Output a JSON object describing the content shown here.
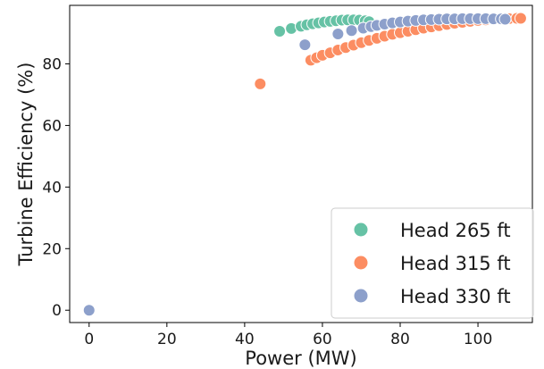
{
  "chart_data": {
    "type": "scatter",
    "title": "",
    "xlabel": "Power (MW)",
    "ylabel": "Turbine Efficiency (%)",
    "xlim": [
      -5,
      114
    ],
    "ylim": [
      -4,
      99
    ],
    "xticks": [
      0,
      20,
      40,
      60,
      80,
      100
    ],
    "yticks": [
      0,
      20,
      40,
      60,
      80
    ],
    "grid": false,
    "legend_position": "bottom-right",
    "series": [
      {
        "name": "Head 265 ft",
        "color": "#66c2a5",
        "points": [
          [
            49,
            90.6
          ],
          [
            52,
            91.5
          ],
          [
            54.5,
            92.2
          ],
          [
            56,
            92.7
          ],
          [
            57.5,
            93.0
          ],
          [
            59,
            93.3
          ],
          [
            60.5,
            93.6
          ],
          [
            62,
            93.8
          ],
          [
            63.5,
            94.0
          ],
          [
            65,
            94.2
          ],
          [
            66.5,
            94.3
          ],
          [
            68,
            94.3
          ],
          [
            69.5,
            94.2
          ],
          [
            71,
            94.0
          ],
          [
            72,
            93.7
          ]
        ]
      },
      {
        "name": "Head 315 ft",
        "color": "#fc8d62",
        "points": [
          [
            44,
            73.5
          ],
          [
            57,
            81.2
          ],
          [
            58.5,
            82.0
          ],
          [
            60,
            82.8
          ],
          [
            62,
            83.6
          ],
          [
            64,
            84.5
          ],
          [
            66,
            85.3
          ],
          [
            68,
            86.1
          ],
          [
            70,
            86.9
          ],
          [
            72,
            87.6
          ],
          [
            74,
            88.3
          ],
          [
            76,
            89.0
          ],
          [
            78,
            89.6
          ],
          [
            80,
            90.1
          ],
          [
            82,
            90.6
          ],
          [
            84,
            91.1
          ],
          [
            86,
            91.6
          ],
          [
            88,
            92.0
          ],
          [
            90,
            92.4
          ],
          [
            92,
            92.8
          ],
          [
            94,
            93.2
          ],
          [
            96,
            93.5
          ],
          [
            98,
            93.8
          ],
          [
            100,
            94.1
          ],
          [
            102,
            94.3
          ],
          [
            104,
            94.5
          ],
          [
            106,
            94.6
          ],
          [
            108,
            94.7
          ],
          [
            110,
            94.8
          ],
          [
            111,
            94.8
          ]
        ]
      },
      {
        "name": "Head 330 ft",
        "color": "#8da0cb",
        "points": [
          [
            0,
            0
          ],
          [
            55.5,
            86.2
          ],
          [
            64,
            89.7
          ],
          [
            67.5,
            90.8
          ],
          [
            70.5,
            91.6
          ],
          [
            72.5,
            92.1
          ],
          [
            74,
            92.5
          ],
          [
            76,
            92.9
          ],
          [
            78,
            93.3
          ],
          [
            80,
            93.6
          ],
          [
            82,
            93.9
          ],
          [
            84,
            94.1
          ],
          [
            86,
            94.3
          ],
          [
            88,
            94.4
          ],
          [
            90,
            94.5
          ],
          [
            92,
            94.6
          ],
          [
            94,
            94.6
          ],
          [
            96,
            94.7
          ],
          [
            98,
            94.7
          ],
          [
            100,
            94.7
          ],
          [
            102,
            94.7
          ],
          [
            104,
            94.6
          ],
          [
            106,
            94.6
          ],
          [
            107,
            94.5
          ]
        ]
      }
    ]
  }
}
